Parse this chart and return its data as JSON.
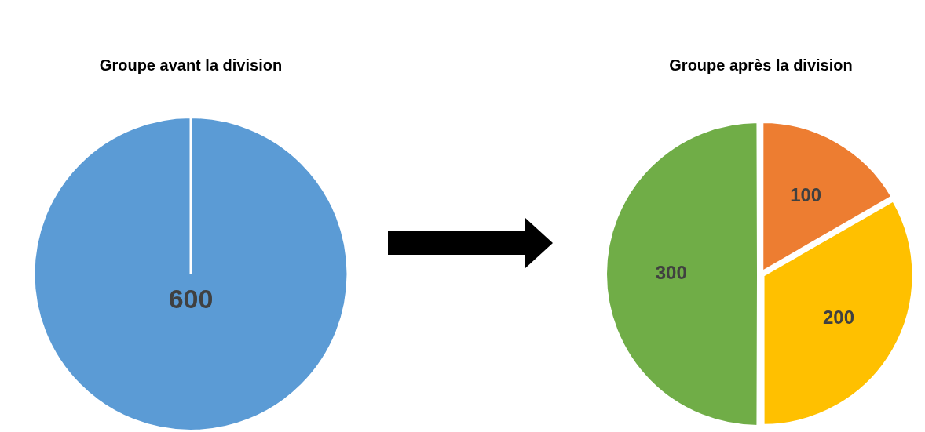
{
  "chart_data": [
    {
      "type": "pie",
      "title": "Groupe avant la division",
      "categories": [
        null
      ],
      "values": [
        600
      ],
      "colors": [
        "#5b9bd5"
      ],
      "data_labels": true,
      "legend": false
    },
    {
      "type": "pie",
      "title": "Groupe après la division",
      "categories": [
        null,
        null,
        null
      ],
      "values": [
        100,
        200,
        300
      ],
      "colors": [
        "#ed7d31",
        "#ffc000",
        "#70ad47"
      ],
      "data_labels": true,
      "legend": false
    }
  ]
}
